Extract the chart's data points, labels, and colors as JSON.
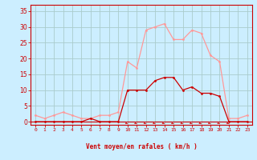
{
  "hours": [
    0,
    1,
    2,
    3,
    4,
    5,
    6,
    7,
    8,
    9,
    10,
    11,
    12,
    13,
    14,
    15,
    16,
    17,
    18,
    19,
    20,
    21,
    22,
    23
  ],
  "wind_mean": [
    0,
    0,
    0,
    0,
    0,
    0,
    1,
    0,
    0,
    0,
    10,
    10,
    10,
    13,
    14,
    14,
    10,
    11,
    9,
    9,
    8,
    0,
    0,
    0
  ],
  "wind_gust": [
    2,
    1,
    2,
    3,
    2,
    1,
    1,
    2,
    2,
    3,
    19,
    17,
    29,
    30,
    31,
    26,
    26,
    29,
    28,
    21,
    19,
    1,
    1,
    2
  ],
  "wind_arrows": [
    10,
    11,
    12,
    13,
    14,
    15,
    16,
    17,
    18,
    19,
    20,
    21
  ],
  "bg_color": "#cceeff",
  "grid_color": "#aacccc",
  "mean_color": "#cc0000",
  "gust_color": "#ff9999",
  "arrow_color": "#cc2222",
  "xlabel": "Vent moyen/en rafales ( km/h )",
  "xlabel_color": "#cc0000",
  "tick_color": "#cc0000",
  "ylim": [
    -1,
    37
  ],
  "yticks": [
    0,
    5,
    10,
    15,
    20,
    25,
    30,
    35
  ],
  "xlim": [
    -0.5,
    23.5
  ]
}
